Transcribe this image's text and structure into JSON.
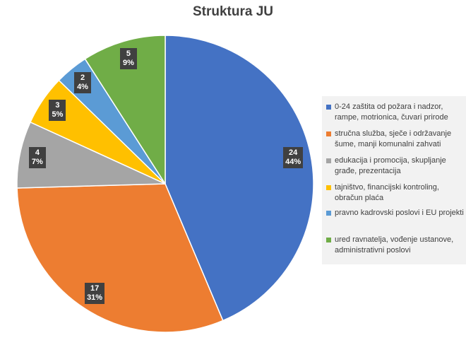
{
  "chart_data": {
    "type": "pie",
    "title": "Struktura JU",
    "legend_position": "right",
    "slices": [
      {
        "label": "0-24 zaštita od požara i nadzor, rampe, motrionica, čuvari prirode",
        "value": 24,
        "percent": "44%",
        "color": "#4472c4"
      },
      {
        "label": "stručna služba, sječe i održavanje šume, manji komunalni zahvati",
        "value": 17,
        "percent": "31%",
        "color": "#ed7d31"
      },
      {
        "label": "edukacija i promocija, skupljanje građe, prezentacija",
        "value": 4,
        "percent": "7%",
        "color": "#a5a5a5"
      },
      {
        "label": "tajništvo, financijski kontroling, obračun plaća",
        "value": 3,
        "percent": "5%",
        "color": "#ffc000"
      },
      {
        "label": "pravno kadrovski poslovi i EU projekti",
        "value": 2,
        "percent": "4%",
        "color": "#5b9bd5"
      },
      {
        "label": "ured ravnatelja, vođenje ustanove, administrativni poslovi",
        "value": 5,
        "percent": "9%",
        "color": "#70ad47"
      }
    ]
  }
}
